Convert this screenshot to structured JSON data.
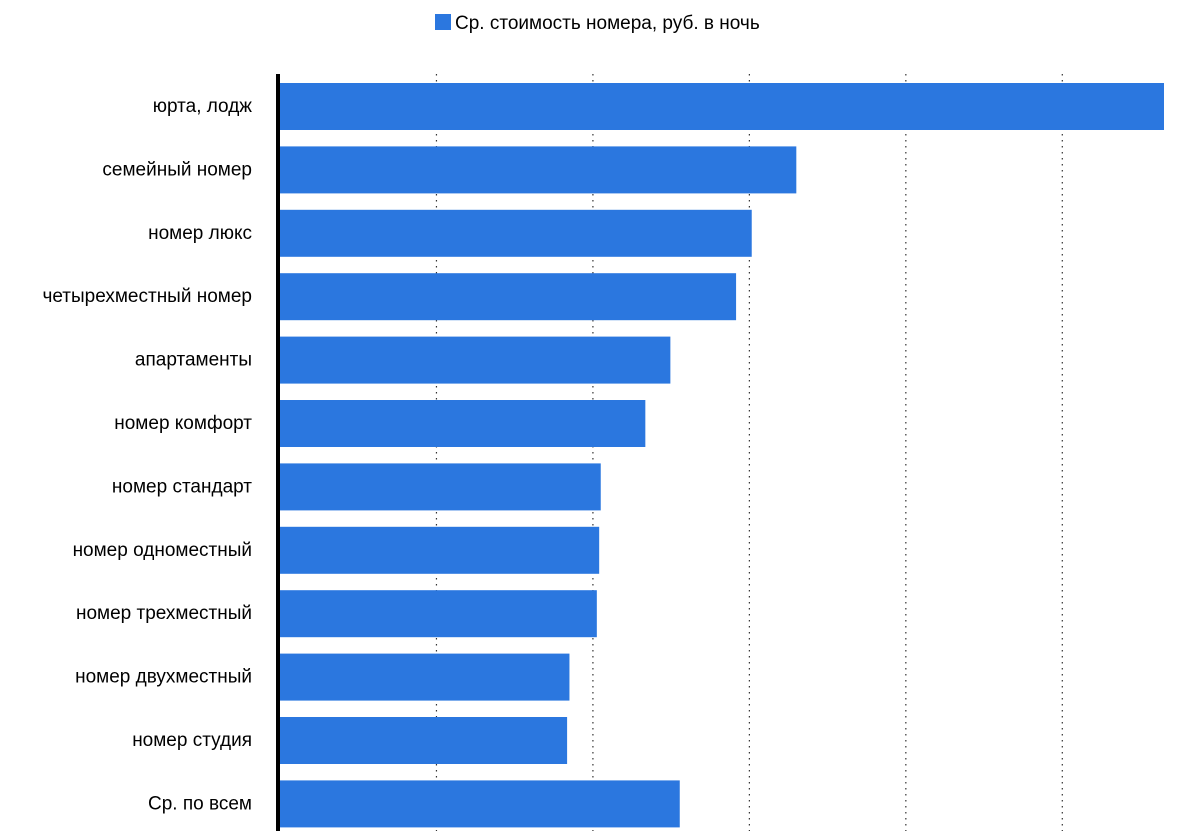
{
  "chart_data": {
    "type": "bar",
    "orientation": "horizontal",
    "title": "",
    "xlabel": "",
    "ylabel": "",
    "categories": [
      "юрта, лодж",
      "семейный номер",
      "номер люкс",
      "четырехместный номер",
      "апартаменты",
      "номер комфорт",
      "номер стандарт",
      "номер одноместный",
      "номер трехместный",
      "номер двухместный",
      "номер студия",
      "Ср. по всем"
    ],
    "series": [
      {
        "name": "Ср. стоимость номера, руб. в ночь",
        "color": "#2b77df",
        "values": [
          5650,
          3300,
          3015,
          2915,
          2495,
          2335,
          2050,
          2040,
          2025,
          1850,
          1835,
          2555
        ]
      }
    ],
    "xlim": [
      0,
      5650
    ],
    "x_gridline_step": 1000,
    "x_tick_labels_shown": false,
    "grid": "vertical dotted",
    "legend": "top-center"
  }
}
